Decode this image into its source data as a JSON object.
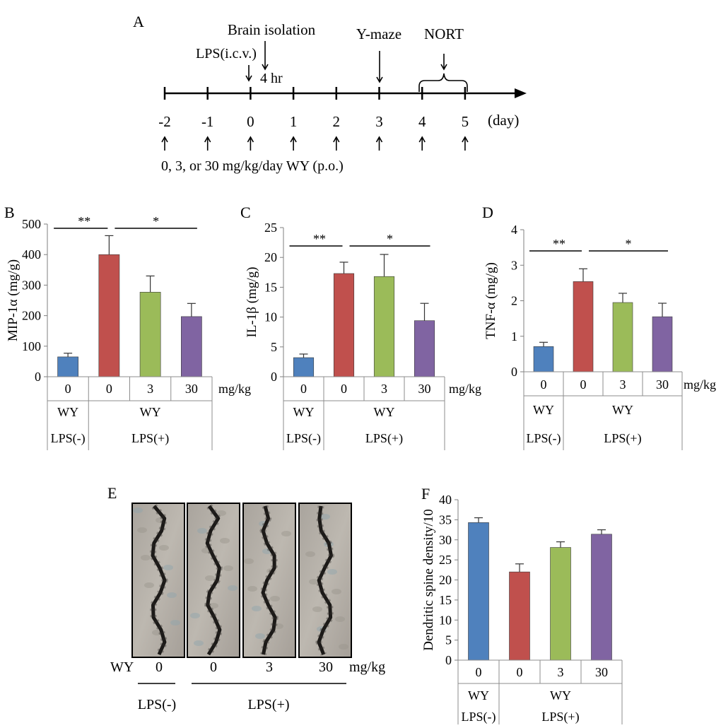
{
  "colors": {
    "blue": "#4f81bd",
    "red": "#c0504d",
    "green": "#9bbb59",
    "purple": "#8064a2"
  },
  "panel_a": {
    "label": "A",
    "brain_isolation": "Brain isolation",
    "lps_icv": "LPS(i.c.v.)",
    "four_hr": "4 hr",
    "ymaze": "Y-maze",
    "nort": "NORT",
    "day_label": "(day)",
    "days": [
      "-2",
      "-1",
      "0",
      "1",
      "2",
      "3",
      "4",
      "5"
    ],
    "dosing": "0, 3, or 30 mg/kg/day WY (p.o.)"
  },
  "chart_data": [
    {
      "panel": "B",
      "type": "bar",
      "ylabel": "MIP-1α (mg/g)",
      "ylim": [
        0,
        500
      ],
      "yticks": [
        "0",
        "100",
        "200",
        "300",
        "400",
        "500"
      ],
      "categories": [
        "0",
        "0",
        "3",
        "30"
      ],
      "values": [
        65,
        400,
        277,
        197
      ],
      "errors": [
        12,
        62,
        53,
        43
      ],
      "unit": "mg/kg",
      "drug": "WY",
      "lps_neg": "LPS(-)",
      "lps_pos": "LPS(+)",
      "sig": [
        {
          "label": "**",
          "from": 0,
          "to": 1
        },
        {
          "label": "*",
          "from": 1,
          "to": 3
        }
      ]
    },
    {
      "panel": "C",
      "type": "bar",
      "ylabel": "IL-1β (mg/g)",
      "ylim": [
        0,
        25
      ],
      "yticks": [
        "0",
        "5",
        "10",
        "15",
        "20",
        "25"
      ],
      "categories": [
        "0",
        "0",
        "3",
        "30"
      ],
      "values": [
        3.2,
        17.3,
        16.8,
        9.4
      ],
      "errors": [
        0.6,
        1.9,
        3.7,
        2.9
      ],
      "unit": "mg/kg",
      "drug": "WY",
      "lps_neg": "LPS(-)",
      "lps_pos": "LPS(+)",
      "sig": [
        {
          "label": "**",
          "from": 0,
          "to": 1
        },
        {
          "label": "*",
          "from": 1,
          "to": 3
        }
      ]
    },
    {
      "panel": "D",
      "type": "bar",
      "ylabel": "TNF-α (mg/g)",
      "ylim": [
        0,
        4
      ],
      "yticks": [
        "0",
        "1",
        "2",
        "3",
        "4"
      ],
      "categories": [
        "0",
        "0",
        "3",
        "30"
      ],
      "values": [
        0.71,
        2.54,
        1.95,
        1.55
      ],
      "errors": [
        0.12,
        0.36,
        0.26,
        0.38
      ],
      "unit": "mg/kg",
      "drug": "WY",
      "lps_neg": "LPS(-)",
      "lps_pos": "LPS(+)",
      "sig": [
        {
          "label": "**",
          "from": 0,
          "to": 1
        },
        {
          "label": "*",
          "from": 1,
          "to": 3
        }
      ]
    },
    {
      "panel": "F",
      "type": "bar",
      "ylabel": "Dendritic spine density/10",
      "ylim": [
        0,
        40
      ],
      "yticks": [
        "0",
        "5",
        "10",
        "15",
        "20",
        "25",
        "30",
        "35",
        "40"
      ],
      "categories": [
        "0",
        "0",
        "3",
        "30"
      ],
      "values": [
        34.3,
        22.0,
        28.1,
        31.4
      ],
      "errors": [
        1.2,
        2.0,
        1.4,
        1.1
      ],
      "unit": "",
      "drug": "WY",
      "lps_neg": "LPS(-)",
      "lps_pos": "LPS(+)",
      "sig": []
    }
  ],
  "panel_e": {
    "label": "E",
    "drug": "WY",
    "doses": [
      "0",
      "0",
      "3",
      "30"
    ],
    "unit": "mg/kg",
    "lps_neg": "LPS(-)",
    "lps_pos": "LPS(+)"
  }
}
